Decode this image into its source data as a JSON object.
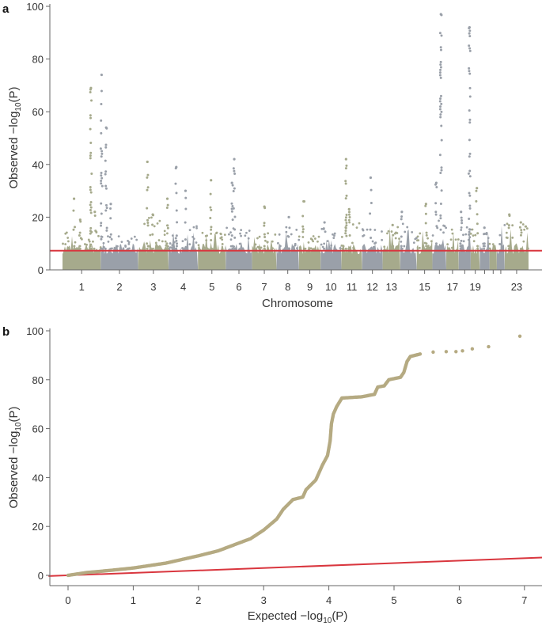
{
  "panels": {
    "a": "a",
    "b": "b"
  },
  "colors": {
    "olive": "#a6aa8c",
    "gray": "#9aa0a9",
    "threshold": "#d9363e",
    "qq": "#b5aa82"
  },
  "chart_data": [
    {
      "type": "scatter",
      "subtype": "manhattan",
      "xlabel": "Chromosome",
      "ylabel": "Observed −log",
      "ylabel_sub": "10",
      "ylabel_tail": "(P)",
      "ylim": [
        0,
        100
      ],
      "yticks": [
        "0",
        "20",
        "40",
        "60",
        "80",
        "100"
      ],
      "threshold": 7.3,
      "grid": false,
      "chromosomes": [
        {
          "id": "1",
          "length_mb": 249,
          "label": "1",
          "bg_max": 15
        },
        {
          "id": "2",
          "length_mb": 243,
          "label": "2",
          "bg_max": 13
        },
        {
          "id": "3",
          "length_mb": 198,
          "label": "3",
          "bg_max": 20
        },
        {
          "id": "4",
          "length_mb": 191,
          "label": "4",
          "bg_max": 17
        },
        {
          "id": "5",
          "length_mb": 181,
          "label": "5",
          "bg_max": 15
        },
        {
          "id": "6",
          "length_mb": 171,
          "label": "6",
          "bg_max": 16
        },
        {
          "id": "7",
          "length_mb": 159,
          "label": "7",
          "bg_max": 14
        },
        {
          "id": "8",
          "length_mb": 146,
          "label": "8",
          "bg_max": 18
        },
        {
          "id": "9",
          "length_mb": 141,
          "label": "9",
          "bg_max": 13
        },
        {
          "id": "10",
          "length_mb": 135,
          "label": "10",
          "bg_max": 16
        },
        {
          "id": "11",
          "length_mb": 135,
          "label": "11",
          "bg_max": 20
        },
        {
          "id": "12",
          "length_mb": 133,
          "label": "12",
          "bg_max": 16
        },
        {
          "id": "13",
          "length_mb": 115,
          "label": "13",
          "bg_max": 17
        },
        {
          "id": "14",
          "length_mb": 107,
          "label": "",
          "bg_max": 18
        },
        {
          "id": "15",
          "length_mb": 102,
          "label": "15",
          "bg_max": 15
        },
        {
          "id": "16",
          "length_mb": 90,
          "label": "",
          "bg_max": 24
        },
        {
          "id": "17",
          "length_mb": 81,
          "label": "17",
          "bg_max": 16
        },
        {
          "id": "18",
          "length_mb": 78,
          "label": "",
          "bg_max": 17
        },
        {
          "id": "19",
          "length_mb": 59,
          "label": "19",
          "bg_max": 17
        },
        {
          "id": "20",
          "length_mb": 63,
          "label": "",
          "bg_max": 15
        },
        {
          "id": "21",
          "length_mb": 48,
          "label": "",
          "bg_max": 10
        },
        {
          "id": "22",
          "length_mb": 51,
          "label": "",
          "bg_max": 17
        },
        {
          "id": "23",
          "length_mb": 155,
          "label": "23",
          "bg_max": 18
        }
      ],
      "peaks": [
        {
          "chr": "1",
          "pos_mb": 75,
          "value": 27
        },
        {
          "chr": "1",
          "pos_mb": 115,
          "value": 19
        },
        {
          "chr": "1",
          "pos_mb": 185,
          "value": 69
        },
        {
          "chr": "1",
          "pos_mb": 210,
          "value": 22
        },
        {
          "chr": "2",
          "pos_mb": 5,
          "value": 74
        },
        {
          "chr": "2",
          "pos_mb": 35,
          "value": 54
        },
        {
          "chr": "2",
          "pos_mb": 65,
          "value": 25
        },
        {
          "chr": "3",
          "pos_mb": 60,
          "value": 41
        },
        {
          "chr": "3",
          "pos_mb": 95,
          "value": 21
        },
        {
          "chr": "3",
          "pos_mb": 190,
          "value": 27
        },
        {
          "chr": "4",
          "pos_mb": 50,
          "value": 39
        },
        {
          "chr": "4",
          "pos_mb": 110,
          "value": 30
        },
        {
          "chr": "5",
          "pos_mb": 85,
          "value": 34
        },
        {
          "chr": "6",
          "pos_mb": 40,
          "value": 33
        },
        {
          "chr": "6",
          "pos_mb": 55,
          "value": 42
        },
        {
          "chr": "7",
          "pos_mb": 80,
          "value": 24
        },
        {
          "chr": "8",
          "pos_mb": 80,
          "value": 20
        },
        {
          "chr": "9",
          "pos_mb": 30,
          "value": 26
        },
        {
          "chr": "10",
          "pos_mb": 25,
          "value": 18
        },
        {
          "chr": "11",
          "pos_mb": 30,
          "value": 42
        },
        {
          "chr": "11",
          "pos_mb": 50,
          "value": 23
        },
        {
          "chr": "12",
          "pos_mb": 55,
          "value": 35
        },
        {
          "chr": "13",
          "pos_mb": 65,
          "value": 17
        },
        {
          "chr": "14",
          "pos_mb": 10,
          "value": 22
        },
        {
          "chr": "15",
          "pos_mb": 60,
          "value": 25
        },
        {
          "chr": "16",
          "pos_mb": 25,
          "value": 33
        },
        {
          "chr": "16",
          "pos_mb": 55,
          "value": 97
        },
        {
          "chr": "18",
          "pos_mb": 15,
          "value": 22
        },
        {
          "chr": "18",
          "pos_mb": 70,
          "value": 92
        },
        {
          "chr": "19",
          "pos_mb": 40,
          "value": 31
        },
        {
          "chr": "20",
          "pos_mb": 30,
          "value": 16
        },
        {
          "chr": "23",
          "pos_mb": 30,
          "value": 21
        },
        {
          "chr": "23",
          "pos_mb": 105,
          "value": 18
        }
      ]
    },
    {
      "type": "scatter",
      "subtype": "qq",
      "xlabel": "Expected −log",
      "xlabel_sub": "10",
      "xlabel_tail": "(P)",
      "ylabel": "Observed −log",
      "ylabel_sub": "10",
      "ylabel_tail": "(P)",
      "xlim": [
        -0.3,
        7.3
      ],
      "ylim": [
        0,
        100
      ],
      "xticks": [
        "0",
        "1",
        "2",
        "3",
        "4",
        "5",
        "6",
        "7"
      ],
      "yticks": [
        "0",
        "20",
        "40",
        "60",
        "80",
        "100"
      ],
      "reference_line": "y = x",
      "grid": false,
      "points": [
        [
          0,
          0
        ],
        [
          0.3,
          1.2
        ],
        [
          0.6,
          1.9
        ],
        [
          1,
          3
        ],
        [
          1.5,
          5
        ],
        [
          2,
          8
        ],
        [
          2.3,
          10
        ],
        [
          2.5,
          12
        ],
        [
          2.8,
          15
        ],
        [
          3,
          18.5
        ],
        [
          3.2,
          23
        ],
        [
          3.3,
          27
        ],
        [
          3.45,
          31
        ],
        [
          3.6,
          32
        ],
        [
          3.65,
          35
        ],
        [
          3.8,
          39
        ],
        [
          3.9,
          45
        ],
        [
          3.98,
          49
        ],
        [
          4.02,
          55
        ],
        [
          4.04,
          62
        ],
        [
          4.07,
          66
        ],
        [
          4.12,
          69
        ],
        [
          4.2,
          72.5
        ],
        [
          4.5,
          73
        ],
        [
          4.7,
          74
        ],
        [
          4.75,
          77
        ],
        [
          4.85,
          77.5
        ],
        [
          4.92,
          80
        ],
        [
          5.1,
          81
        ],
        [
          5.15,
          83
        ],
        [
          5.2,
          87.5
        ],
        [
          5.25,
          89.5
        ],
        [
          5.4,
          90.5
        ],
        [
          5.6,
          91.3
        ],
        [
          5.8,
          91.5
        ],
        [
          5.95,
          91.5
        ],
        [
          6.05,
          91.8
        ],
        [
          6.2,
          92.6
        ],
        [
          6.45,
          93.5
        ],
        [
          6.93,
          97.8
        ]
      ]
    }
  ]
}
